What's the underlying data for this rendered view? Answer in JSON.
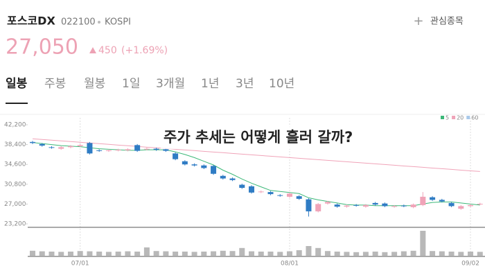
{
  "header": {
    "name": "포스코DX",
    "code": "022100",
    "market": "KOSPI",
    "watch": "관심종목",
    "price": "27,050",
    "change": "450",
    "change_pct": "(+1.69%)"
  },
  "tabs": [
    "일봉",
    "주봉",
    "월봉",
    "1일",
    "3개월",
    "1년",
    "3년",
    "10년"
  ],
  "chart_data": {
    "type": "candlestick",
    "annotation": "주가 추세는 어떻게 흘러 갈까?",
    "categories": [
      null,
      null,
      null,
      null,
      null,
      "07/01",
      null,
      null,
      null,
      null,
      null,
      null,
      null,
      null,
      null,
      null,
      null,
      null,
      null,
      null,
      null,
      null,
      null,
      null,
      null,
      null,
      null,
      "08/01",
      null,
      null,
      null,
      null,
      null,
      null,
      null,
      null,
      null,
      null,
      null,
      null,
      null,
      null,
      null,
      null,
      null,
      null,
      "09/02",
      null
    ],
    "open": [
      38900,
      38500,
      37900,
      37600,
      37900,
      38100,
      38700,
      37300,
      37200,
      37300,
      37300,
      38300,
      37500,
      37600,
      37500,
      36700,
      35200,
      34600,
      34400,
      34300,
      32400,
      31900,
      30700,
      30400,
      29300,
      29300,
      28700,
      28400,
      28500,
      27900,
      25600,
      27100,
      26900,
      26500,
      26800,
      26500,
      27200,
      27100,
      26500,
      26700,
      26400,
      26800,
      28300,
      27800,
      27200,
      26100,
      26600,
      27000
    ],
    "high": [
      39100,
      38700,
      38100,
      38100,
      38300,
      38500,
      38900,
      37500,
      37500,
      37600,
      37700,
      38500,
      37800,
      37800,
      37700,
      36900,
      35400,
      34800,
      34600,
      34500,
      32600,
      32100,
      30900,
      30600,
      29600,
      29500,
      28900,
      29200,
      28700,
      28100,
      27200,
      27600,
      27100,
      26900,
      27000,
      27000,
      27400,
      27300,
      26800,
      26900,
      27100,
      29300,
      28500,
      28000,
      27400,
      26800,
      27000,
      27250
    ],
    "low": [
      38500,
      38000,
      37600,
      37400,
      37700,
      37900,
      36500,
      37000,
      37000,
      37100,
      37100,
      37000,
      37300,
      37200,
      37000,
      35400,
      34400,
      34200,
      33700,
      32600,
      31700,
      31400,
      29900,
      29000,
      29100,
      28700,
      28400,
      28200,
      27800,
      24600,
      25400,
      26900,
      26300,
      26300,
      26500,
      26300,
      26700,
      26400,
      26300,
      26400,
      26200,
      26600,
      27600,
      27300,
      26400,
      25900,
      26400,
      26800
    ],
    "close": [
      38700,
      38200,
      37800,
      37900,
      38100,
      38300,
      36700,
      37200,
      37300,
      37400,
      37500,
      37200,
      37600,
      37400,
      37200,
      35600,
      34600,
      34400,
      33900,
      32800,
      31900,
      31600,
      30100,
      29200,
      29400,
      28900,
      28600,
      29000,
      28000,
      25600,
      27000,
      27400,
      26500,
      26700,
      26700,
      26800,
      26900,
      26600,
      26600,
      26600,
      26900,
      28400,
      27800,
      27500,
      26600,
      26600,
      26800,
      27050
    ],
    "volume": [
      180000,
      160000,
      150000,
      140000,
      150000,
      170000,
      160000,
      150000,
      140000,
      150000,
      160000,
      150000,
      300000,
      170000,
      160000,
      150000,
      150000,
      140000,
      150000,
      160000,
      180000,
      170000,
      280000,
      160000,
      150000,
      150000,
      140000,
      160000,
      200000,
      350000,
      280000,
      170000,
      150000,
      140000,
      130000,
      140000,
      150000,
      130000,
      140000,
      160000,
      180000,
      900000,
      170000,
      160000,
      150000,
      140000,
      150000,
      140000
    ],
    "up_color": "#f0a3b8",
    "down_color": "#2f7cc4",
    "volume_color": "#b8b8b8",
    "series": [
      {
        "name": "5",
        "color": "#3cb878",
        "values": [
          38800,
          38600,
          38400,
          38200,
          38100,
          38000,
          37800,
          37600,
          37500,
          37400,
          37300,
          37300,
          37400,
          37400,
          37400,
          37000,
          36500,
          35900,
          35200,
          34500,
          33500,
          32700,
          31800,
          31000,
          30300,
          29600,
          29400,
          29200,
          29000,
          28200,
          27800,
          27500,
          27200,
          26900,
          26800,
          26800,
          26700,
          26700,
          26700,
          26700,
          26700,
          27000,
          27300,
          27400,
          27400,
          27200,
          27000,
          26800
        ]
      },
      {
        "name": "20",
        "color": "#f0a3b8",
        "values": [
          39500,
          39370,
          39240,
          39100,
          38970,
          38840,
          38700,
          38570,
          38440,
          38300,
          38170,
          38040,
          37900,
          37770,
          37640,
          37500,
          37370,
          37240,
          37100,
          36970,
          36840,
          36700,
          36570,
          36440,
          36300,
          36170,
          36040,
          35900,
          35770,
          35640,
          35500,
          35370,
          35240,
          35100,
          34970,
          34840,
          34700,
          34570,
          34440,
          34300,
          34170,
          34040,
          33900,
          33770,
          33640,
          33500,
          33370,
          33240
        ]
      },
      {
        "name": "60",
        "color": "#a9c9ea",
        "values": [
          null,
          null,
          null,
          null,
          null,
          null,
          null,
          null,
          null,
          null,
          null,
          null,
          null,
          null,
          null,
          null,
          null,
          null,
          null,
          null,
          null,
          null,
          null,
          null,
          null,
          null,
          null,
          null,
          null,
          null,
          null,
          null,
          null,
          null,
          null,
          null,
          null,
          null,
          null,
          null,
          null,
          null,
          null,
          null,
          null,
          null,
          null,
          null
        ]
      }
    ],
    "ylim": [
      23200,
      42200
    ],
    "yticks": [
      {
        "value": 23200,
        "label": "23,200"
      },
      {
        "value": 27000,
        "label": "27,000"
      },
      {
        "value": 30800,
        "label": "30,800"
      },
      {
        "value": 34600,
        "label": "34,600"
      },
      {
        "value": 38400,
        "label": "38,400"
      },
      {
        "value": 42200,
        "label": "42,200"
      }
    ]
  }
}
